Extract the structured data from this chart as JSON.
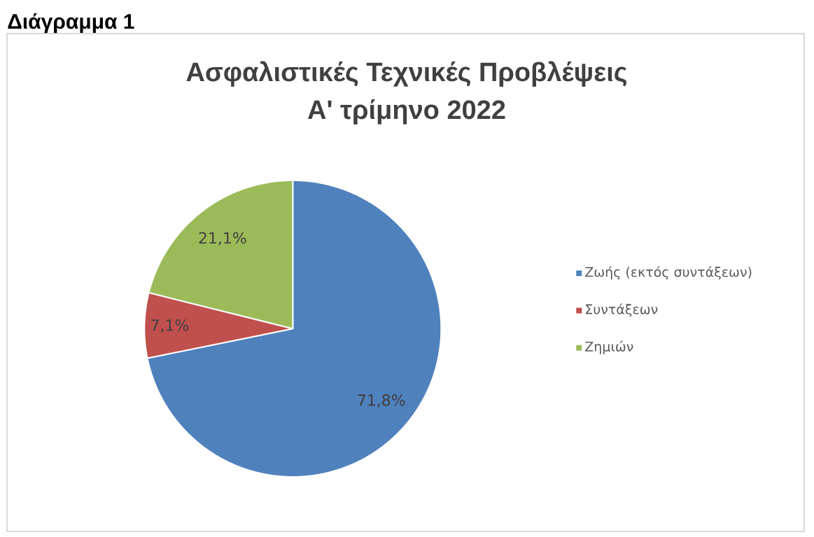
{
  "chart_data": {
    "type": "pie",
    "title": "Ασφαλιστικές Τεχνικές Προβλέψεις",
    "subtitle": "Α' τρίμηνο 2022",
    "annotations": [
      "Διάγραμμα 1"
    ],
    "categories": [
      "Ζωής (εκτός συντάξεων)",
      "Συντάξεων",
      "Ζημιών"
    ],
    "values": [
      71.8,
      7.1,
      21.1
    ],
    "colors": [
      "#4f81bd",
      "#c0504d",
      "#9bbb59"
    ],
    "value_labels": [
      "71,8%",
      "7,1%",
      "21,1%"
    ],
    "legend": "right"
  }
}
